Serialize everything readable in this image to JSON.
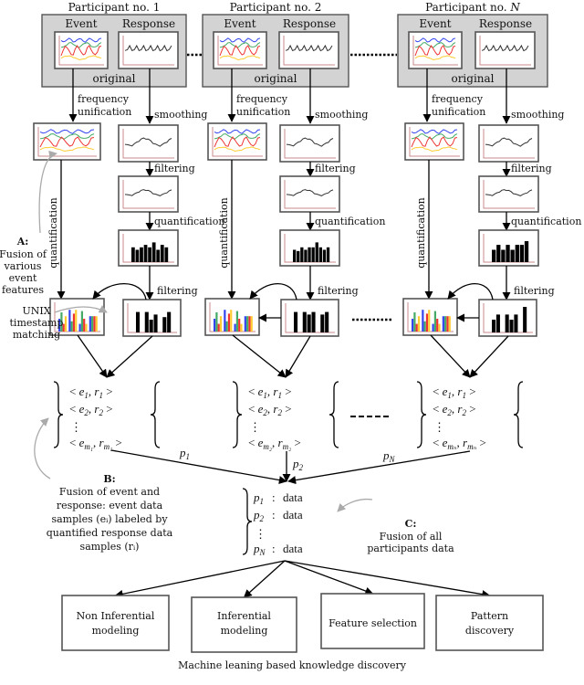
{
  "participants": [
    {
      "title": "Participant no. 1",
      "event": "Event",
      "response": "Response",
      "original": "original"
    },
    {
      "title": "Participant no. 2",
      "event": "Event",
      "response": "Response",
      "original": "original"
    },
    {
      "title": "Participant no. ",
      "title_var": "N",
      "event": "Event",
      "response": "Response",
      "original": "original"
    }
  ],
  "steps": {
    "frequency_unification": [
      "frequency",
      "unification"
    ],
    "smoothing": "smoothing",
    "filtering": "filtering",
    "quantification": "quantification"
  },
  "annotations": {
    "A": {
      "label": "A:",
      "lines": [
        "Fusion of",
        "various",
        "event",
        "features"
      ]
    },
    "unix": [
      "UNIX",
      "timestamp",
      "matching"
    ],
    "B": {
      "label": "B:",
      "lines": [
        "Fusion of event and",
        "response: event data",
        "samples (eᵢ) labeled by",
        "quantified response data",
        "samples (rᵢ)"
      ]
    },
    "C": {
      "label": "C:",
      "lines": [
        "Fusion of all",
        "participants data"
      ]
    }
  },
  "sets": [
    {
      "rows": [
        [
          "1",
          "1"
        ],
        [
          "2",
          "2"
        ],
        [
          "m₁",
          "m₁"
        ]
      ],
      "edge_label": "p",
      "edge_sub": "1"
    },
    {
      "rows": [
        [
          "1",
          "1"
        ],
        [
          "2",
          "2"
        ],
        [
          "m₂",
          "m₂"
        ]
      ],
      "edge_label": "p",
      "edge_sub": "2"
    },
    {
      "rows": [
        [
          "1",
          "1"
        ],
        [
          "2",
          "2"
        ],
        [
          "mₙ",
          "mₙ"
        ]
      ],
      "edge_label": "p",
      "edge_sub": "N"
    }
  ],
  "fusion": {
    "rows": [
      [
        "1",
        "data"
      ],
      [
        "2",
        "data"
      ],
      [
        "N",
        "data"
      ]
    ]
  },
  "outputs": [
    [
      "Non Inferential",
      "modeling"
    ],
    [
      "Inferential",
      "modeling"
    ],
    [
      "Feature selection"
    ],
    [
      "Pattern",
      "discovery"
    ]
  ],
  "footer": "Machine leaning based knowledge discovery",
  "colors": {
    "blue": "#3344ee",
    "red": "#ee3333",
    "green": "#44aa66",
    "yellow": "#ffcc33",
    "axis": "#c98a8a",
    "panel": "#d3d3d3",
    "annotation_arrow": "#aaaaaa"
  }
}
